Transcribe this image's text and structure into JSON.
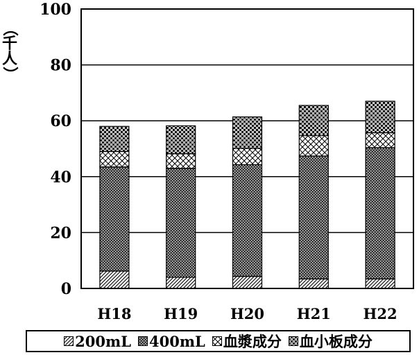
{
  "chart_data": {
    "type": "bar",
    "stacked": true,
    "ylabel": "（千人）",
    "ylim": [
      0,
      100
    ],
    "yticks": [
      0,
      20,
      40,
      60,
      80,
      100
    ],
    "grid": true,
    "legend_position": "bottom",
    "categories": [
      "H18",
      "H19",
      "H20",
      "H21",
      "H22"
    ],
    "series": [
      {
        "name": "200mL",
        "values": [
          6.2,
          4.0,
          4.3,
          3.4,
          3.4
        ],
        "pattern": "diagonal"
      },
      {
        "name": "400mL",
        "values": [
          37.3,
          39.0,
          40.0,
          44.0,
          47.0
        ],
        "pattern": "dense-dots"
      },
      {
        "name": "血漿成分",
        "values": [
          5.5,
          5.2,
          5.8,
          7.3,
          5.3
        ],
        "pattern": "cross-hatch"
      },
      {
        "name": "血小板成分",
        "values": [
          9.0,
          10.0,
          11.3,
          10.8,
          11.3
        ],
        "pattern": "checker"
      }
    ]
  },
  "ylabel_chars": [
    "（",
    "千",
    "人",
    "）"
  ]
}
